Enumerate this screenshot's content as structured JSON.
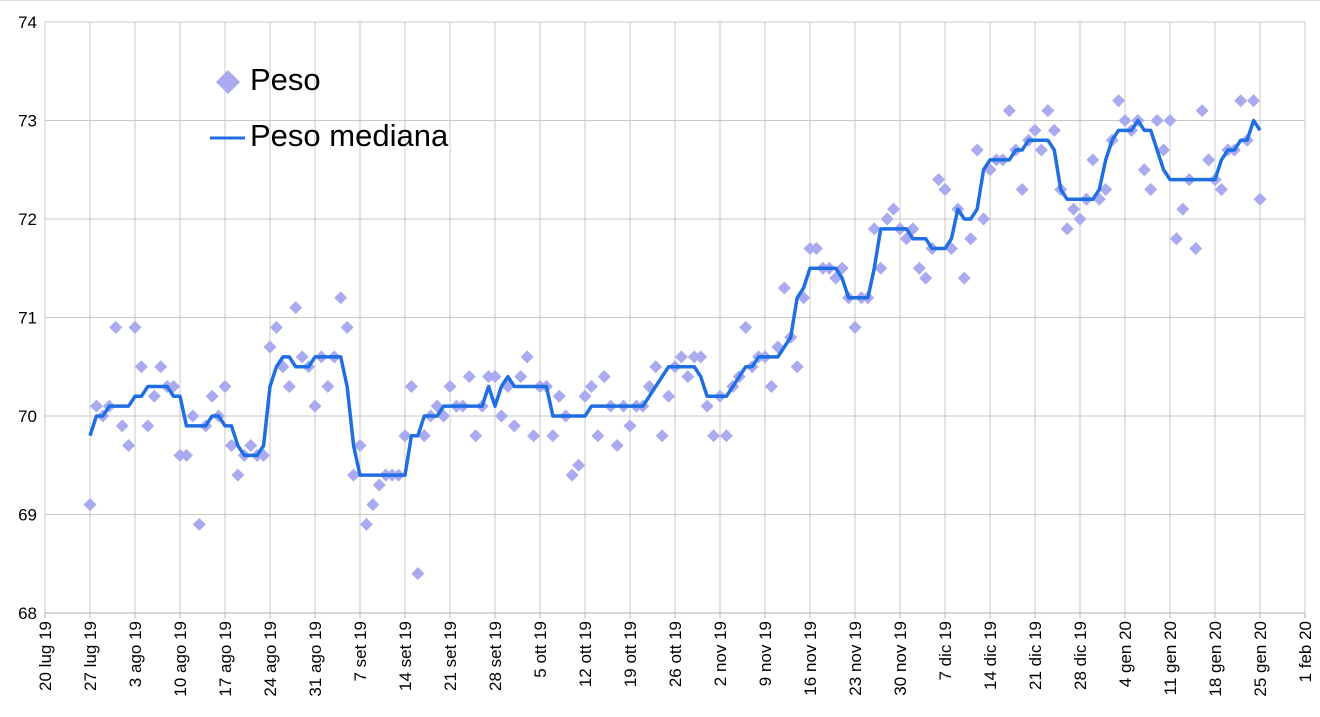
{
  "chart_data": {
    "type": "scatter",
    "x": [
      "2019-07-27",
      "2019-07-28",
      "2019-07-29",
      "2019-07-30",
      "2019-07-31",
      "2019-08-01",
      "2019-08-02",
      "2019-08-03",
      "2019-08-04",
      "2019-08-05",
      "2019-08-06",
      "2019-08-07",
      "2019-08-08",
      "2019-08-09",
      "2019-08-10",
      "2019-08-11",
      "2019-08-12",
      "2019-08-13",
      "2019-08-14",
      "2019-08-15",
      "2019-08-16",
      "2019-08-17",
      "2019-08-18",
      "2019-08-19",
      "2019-08-20",
      "2019-08-21",
      "2019-08-22",
      "2019-08-23",
      "2019-08-24",
      "2019-08-25",
      "2019-08-26",
      "2019-08-27",
      "2019-08-28",
      "2019-08-29",
      "2019-08-30",
      "2019-08-31",
      "2019-09-01",
      "2019-09-02",
      "2019-09-03",
      "2019-09-04",
      "2019-09-05",
      "2019-09-06",
      "2019-09-07",
      "2019-09-08",
      "2019-09-09",
      "2019-09-10",
      "2019-09-11",
      "2019-09-12",
      "2019-09-13",
      "2019-09-14",
      "2019-09-15",
      "2019-09-16",
      "2019-09-17",
      "2019-09-18",
      "2019-09-19",
      "2019-09-20",
      "2019-09-21",
      "2019-09-22",
      "2019-09-23",
      "2019-09-24",
      "2019-09-25",
      "2019-09-26",
      "2019-09-27",
      "2019-09-28",
      "2019-09-29",
      "2019-09-30",
      "2019-10-01",
      "2019-10-02",
      "2019-10-03",
      "2019-10-04",
      "2019-10-05",
      "2019-10-06",
      "2019-10-07",
      "2019-10-08",
      "2019-10-09",
      "2019-10-10",
      "2019-10-11",
      "2019-10-12",
      "2019-10-13",
      "2019-10-14",
      "2019-10-15",
      "2019-10-16",
      "2019-10-17",
      "2019-10-18",
      "2019-10-19",
      "2019-10-20",
      "2019-10-21",
      "2019-10-22",
      "2019-10-23",
      "2019-10-24",
      "2019-10-25",
      "2019-10-26",
      "2019-10-27",
      "2019-10-28",
      "2019-10-29",
      "2019-10-30",
      "2019-10-31",
      "2019-11-01",
      "2019-11-02",
      "2019-11-03",
      "2019-11-04",
      "2019-11-05",
      "2019-11-06",
      "2019-11-07",
      "2019-11-08",
      "2019-11-09",
      "2019-11-10",
      "2019-11-11",
      "2019-11-12",
      "2019-11-13",
      "2019-11-14",
      "2019-11-15",
      "2019-11-16",
      "2019-11-17",
      "2019-11-18",
      "2019-11-19",
      "2019-11-20",
      "2019-11-21",
      "2019-11-22",
      "2019-11-23",
      "2019-11-24",
      "2019-11-25",
      "2019-11-26",
      "2019-11-27",
      "2019-11-28",
      "2019-11-29",
      "2019-11-30",
      "2019-12-01",
      "2019-12-02",
      "2019-12-03",
      "2019-12-04",
      "2019-12-05",
      "2019-12-06",
      "2019-12-07",
      "2019-12-08",
      "2019-12-09",
      "2019-12-10",
      "2019-12-11",
      "2019-12-12",
      "2019-12-13",
      "2019-12-14",
      "2019-12-15",
      "2019-12-16",
      "2019-12-17",
      "2019-12-18",
      "2019-12-19",
      "2019-12-20",
      "2019-12-21",
      "2019-12-22",
      "2019-12-23",
      "2019-12-24",
      "2019-12-25",
      "2019-12-26",
      "2019-12-27",
      "2019-12-28",
      "2019-12-29",
      "2019-12-30",
      "2019-12-31",
      "2020-01-01",
      "2020-01-02",
      "2020-01-03",
      "2020-01-04",
      "2020-01-05",
      "2020-01-06",
      "2020-01-07",
      "2020-01-08",
      "2020-01-09",
      "2020-01-10",
      "2020-01-11",
      "2020-01-12",
      "2020-01-13",
      "2020-01-14",
      "2020-01-15",
      "2020-01-16",
      "2020-01-17",
      "2020-01-18",
      "2020-01-19",
      "2020-01-20",
      "2020-01-21",
      "2020-01-22",
      "2020-01-23",
      "2020-01-24",
      "2020-01-25"
    ],
    "series": [
      {
        "name": "Peso",
        "type": "scatter",
        "color": "#aaaaf0",
        "values": [
          69.1,
          70.1,
          70.0,
          70.1,
          70.9,
          69.9,
          69.7,
          70.9,
          70.5,
          69.9,
          70.2,
          70.5,
          70.3,
          70.3,
          69.6,
          69.6,
          70.0,
          68.9,
          69.9,
          70.2,
          70.0,
          70.3,
          69.7,
          69.4,
          69.6,
          69.7,
          69.6,
          69.6,
          70.7,
          70.9,
          70.5,
          70.3,
          71.1,
          70.6,
          70.5,
          70.1,
          70.6,
          70.3,
          70.6,
          71.2,
          70.9,
          69.4,
          69.7,
          68.9,
          69.1,
          69.3,
          69.4,
          69.4,
          69.4,
          69.8,
          70.3,
          68.4,
          69.8,
          70.0,
          70.1,
          70.0,
          70.3,
          70.1,
          70.1,
          70.4,
          69.8,
          70.1,
          70.4,
          70.4,
          70.0,
          70.3,
          69.9,
          70.4,
          70.6,
          69.8,
          70.3,
          70.3,
          69.8,
          70.2,
          70.0,
          69.4,
          69.5,
          70.2,
          70.3,
          69.8,
          70.4,
          70.1,
          69.7,
          70.1,
          69.9,
          70.1,
          70.1,
          70.3,
          70.5,
          69.8,
          70.2,
          70.5,
          70.6,
          70.4,
          70.6,
          70.6,
          70.1,
          69.8,
          70.2,
          69.8,
          70.3,
          70.4,
          70.9,
          70.5,
          70.6,
          70.6,
          70.3,
          70.7,
          71.3,
          70.8,
          70.5,
          71.2,
          71.7,
          71.7,
          71.5,
          71.5,
          71.4,
          71.5,
          71.2,
          70.9,
          71.2,
          71.2,
          71.9,
          71.5,
          72.0,
          72.1,
          71.9,
          71.8,
          71.9,
          71.5,
          71.4,
          71.7,
          72.4,
          72.3,
          71.7,
          72.1,
          71.4,
          71.8,
          72.7,
          72.0,
          72.5,
          72.6,
          72.6,
          73.1,
          72.7,
          72.3,
          72.8,
          72.9,
          72.7,
          73.1,
          72.9,
          72.3,
          71.9,
          72.1,
          72.0,
          72.2,
          72.6,
          72.2,
          72.3,
          72.8,
          73.2,
          73.0,
          72.9,
          73.0,
          72.5,
          72.3,
          73.0,
          72.7,
          73.0,
          71.8,
          72.1,
          72.4,
          71.7,
          73.1,
          72.6,
          72.4,
          72.3,
          72.7,
          72.7,
          73.2,
          72.8,
          73.2,
          72.2
        ]
      },
      {
        "name": "Peso mediana",
        "type": "line",
        "color": "#1f6fe3",
        "values": [
          69.8,
          70.0,
          70.0,
          70.1,
          70.1,
          70.1,
          70.1,
          70.2,
          70.2,
          70.3,
          70.3,
          70.3,
          70.3,
          70.2,
          70.2,
          69.9,
          69.9,
          69.9,
          69.9,
          70.0,
          70.0,
          69.9,
          69.9,
          69.7,
          69.6,
          69.6,
          69.6,
          69.7,
          70.3,
          70.5,
          70.6,
          70.6,
          70.5,
          70.5,
          70.5,
          70.6,
          70.6,
          70.6,
          70.6,
          70.6,
          70.3,
          69.7,
          69.4,
          69.4,
          69.4,
          69.4,
          69.4,
          69.4,
          69.4,
          69.4,
          69.8,
          69.8,
          70.0,
          70.0,
          70.0,
          70.1,
          70.1,
          70.1,
          70.1,
          70.1,
          70.1,
          70.1,
          70.3,
          70.1,
          70.3,
          70.4,
          70.3,
          70.3,
          70.3,
          70.3,
          70.3,
          70.3,
          70.0,
          70.0,
          70.0,
          70.0,
          70.0,
          70.0,
          70.1,
          70.1,
          70.1,
          70.1,
          70.1,
          70.1,
          70.1,
          70.1,
          70.1,
          70.2,
          70.3,
          70.4,
          70.5,
          70.5,
          70.5,
          70.5,
          70.5,
          70.4,
          70.2,
          70.2,
          70.2,
          70.2,
          70.3,
          70.4,
          70.5,
          70.5,
          70.6,
          70.6,
          70.6,
          70.6,
          70.7,
          70.8,
          71.2,
          71.3,
          71.5,
          71.5,
          71.5,
          71.5,
          71.5,
          71.4,
          71.2,
          71.2,
          71.2,
          71.2,
          71.5,
          71.9,
          71.9,
          71.9,
          71.9,
          71.9,
          71.8,
          71.8,
          71.8,
          71.7,
          71.7,
          71.7,
          71.8,
          72.1,
          72.0,
          72.0,
          72.1,
          72.5,
          72.6,
          72.6,
          72.6,
          72.6,
          72.7,
          72.7,
          72.8,
          72.8,
          72.8,
          72.8,
          72.7,
          72.3,
          72.2,
          72.2,
          72.2,
          72.2,
          72.2,
          72.3,
          72.6,
          72.8,
          72.9,
          72.9,
          72.9,
          73.0,
          72.9,
          72.9,
          72.7,
          72.5,
          72.4,
          72.4,
          72.4,
          72.4,
          72.4,
          72.4,
          72.4,
          72.4,
          72.6,
          72.7,
          72.7,
          72.8,
          72.8,
          73.0,
          72.9
        ]
      }
    ],
    "xlim": [
      "2019-07-20",
      "2020-02-01"
    ],
    "xticks": [
      {
        "value": "2019-07-20",
        "label": "20 lug 19"
      },
      {
        "value": "2019-07-27",
        "label": "27 lug 19"
      },
      {
        "value": "2019-08-03",
        "label": "3 ago 19"
      },
      {
        "value": "2019-08-10",
        "label": "10 ago 19"
      },
      {
        "value": "2019-08-17",
        "label": "17 ago 19"
      },
      {
        "value": "2019-08-24",
        "label": "24 ago 19"
      },
      {
        "value": "2019-08-31",
        "label": "31 ago 19"
      },
      {
        "value": "2019-09-07",
        "label": "7 set 19"
      },
      {
        "value": "2019-09-14",
        "label": "14 set 19"
      },
      {
        "value": "2019-09-21",
        "label": "21 set 19"
      },
      {
        "value": "2019-09-28",
        "label": "28 set 19"
      },
      {
        "value": "2019-10-05",
        "label": "5 ott 19"
      },
      {
        "value": "2019-10-12",
        "label": "12 ott 19"
      },
      {
        "value": "2019-10-19",
        "label": "19 ott 19"
      },
      {
        "value": "2019-10-26",
        "label": "26 ott 19"
      },
      {
        "value": "2019-11-02",
        "label": "2 nov 19"
      },
      {
        "value": "2019-11-09",
        "label": "9 nov 19"
      },
      {
        "value": "2019-11-16",
        "label": "16 nov 19"
      },
      {
        "value": "2019-11-23",
        "label": "23 nov 19"
      },
      {
        "value": "2019-11-30",
        "label": "30 nov 19"
      },
      {
        "value": "2019-12-07",
        "label": "7 dic 19"
      },
      {
        "value": "2019-12-14",
        "label": "14 dic 19"
      },
      {
        "value": "2019-12-21",
        "label": "21 dic 19"
      },
      {
        "value": "2019-12-28",
        "label": "28 dic 19"
      },
      {
        "value": "2020-01-04",
        "label": "4 gen 20"
      },
      {
        "value": "2020-01-11",
        "label": "11 gen 20"
      },
      {
        "value": "2020-01-18",
        "label": "18 gen 20"
      },
      {
        "value": "2020-01-25",
        "label": "25 gen 20"
      },
      {
        "value": "2020-02-01",
        "label": "1 feb 20"
      }
    ],
    "ylim": [
      68,
      74
    ],
    "yticks": [
      68,
      69,
      70,
      71,
      72,
      73,
      74
    ],
    "grid": true,
    "legend": "top-left"
  }
}
